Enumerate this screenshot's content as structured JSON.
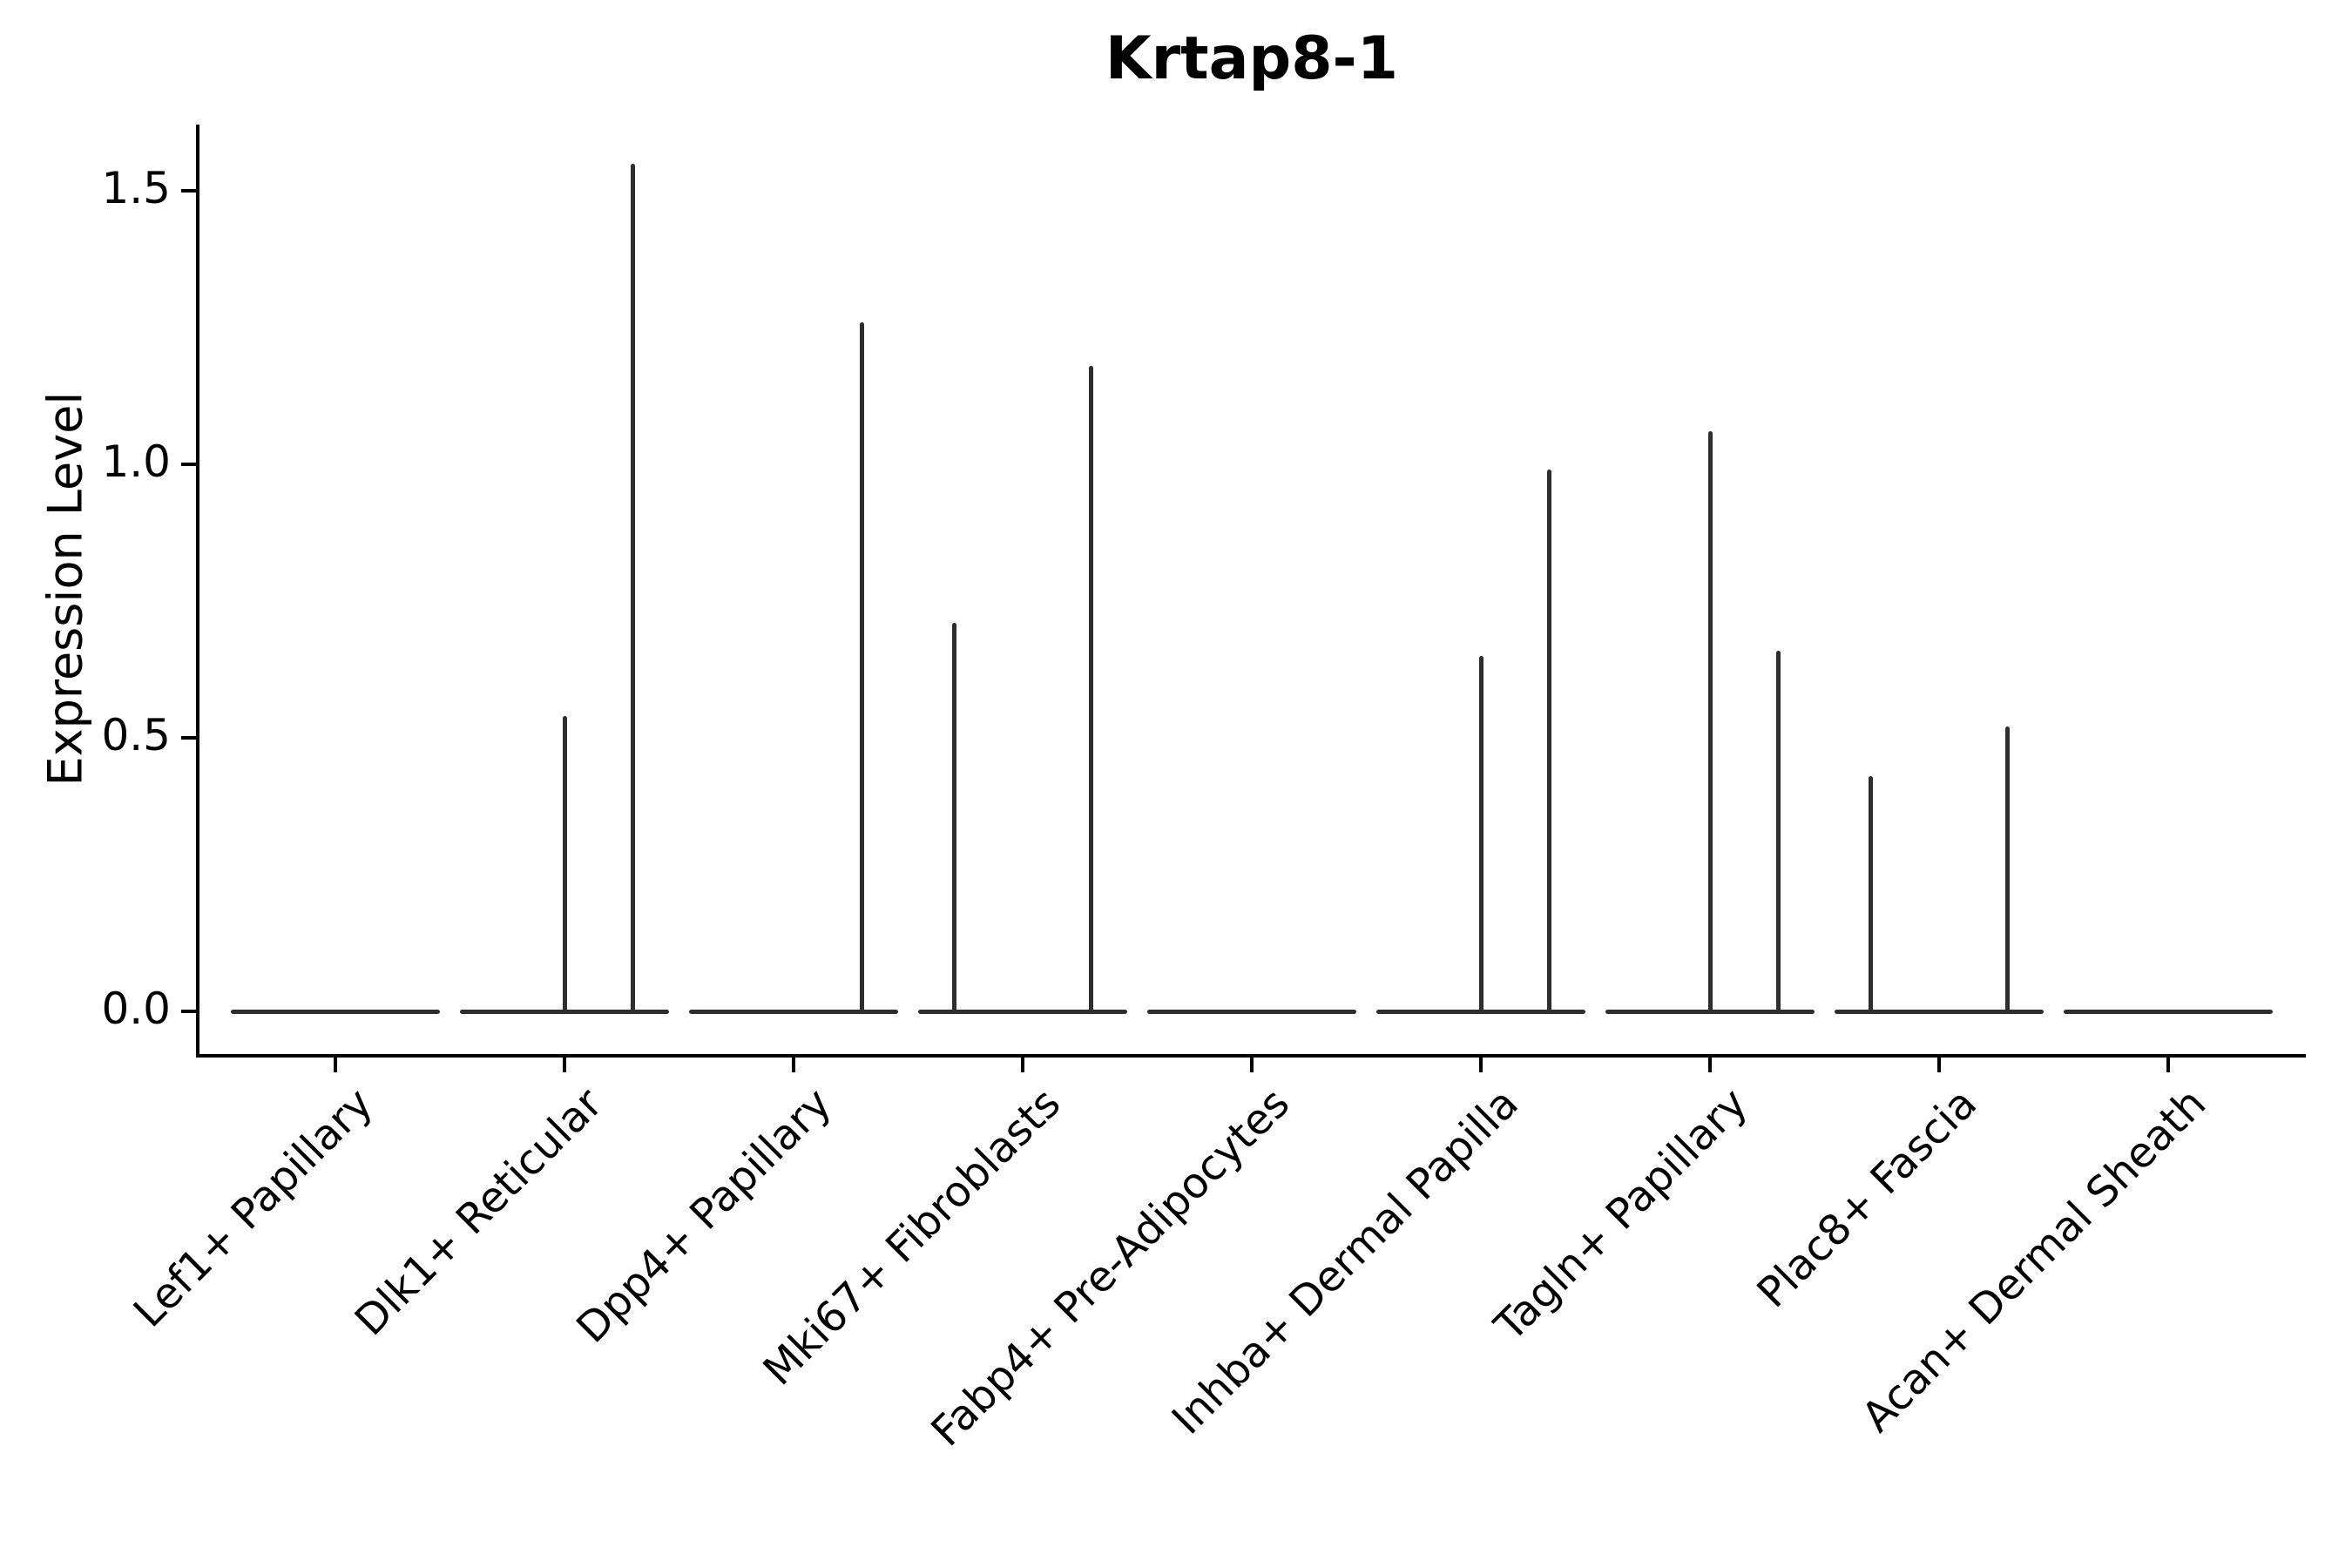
{
  "title": "Krtap8-1",
  "y_axis": {
    "label": "Expression Level",
    "tick_labels": [
      "0.0",
      "0.5",
      "1.0",
      "1.5"
    ],
    "tick_values": [
      0.0,
      0.5,
      1.0,
      1.5
    ]
  },
  "chart_data": {
    "type": "violin",
    "title": "Krtap8-1",
    "xlabel": "",
    "ylabel": "Expression Level",
    "ylim": [
      -0.08,
      1.62
    ],
    "y_ticks": [
      0.0,
      0.5,
      1.0,
      1.5
    ],
    "grid": false,
    "legend_position": "none",
    "categories": [
      "Lef1+ Papillary",
      "Dlk1+ Reticular",
      "Dpp4+ Papillary",
      "Mki67+ Fibroblasts",
      "Fabp4+ Pre-Adipocytes",
      "Inhba+ Dermal Papilla",
      "Tagln+ Papillary",
      "Plac8+ Fascia",
      "Acan+ Dermal Sheath"
    ],
    "series": [
      {
        "category": "Lef1+ Papillary",
        "baseline_value": 0.0,
        "spikes": []
      },
      {
        "category": "Dlk1+ Reticular",
        "baseline_value": 0.0,
        "spikes": [
          {
            "offset": 0.0,
            "value": 0.54
          },
          {
            "offset": 0.3,
            "value": 1.55
          }
        ]
      },
      {
        "category": "Dpp4+ Papillary",
        "baseline_value": 0.0,
        "spikes": [
          {
            "offset": 0.3,
            "value": 1.26
          }
        ]
      },
      {
        "category": "Mki67+ Fibroblasts",
        "baseline_value": 0.0,
        "spikes": [
          {
            "offset": -0.3,
            "value": 0.71
          },
          {
            "offset": 0.3,
            "value": 1.18
          }
        ]
      },
      {
        "category": "Fabp4+ Pre-Adipocytes",
        "baseline_value": 0.0,
        "spikes": []
      },
      {
        "category": "Inhba+ Dermal Papilla",
        "baseline_value": 0.0,
        "spikes": [
          {
            "offset": 0.0,
            "value": 0.65
          },
          {
            "offset": 0.3,
            "value": 0.99
          }
        ]
      },
      {
        "category": "Tagln+ Papillary",
        "baseline_value": 0.0,
        "spikes": [
          {
            "offset": 0.0,
            "value": 1.06
          },
          {
            "offset": 0.3,
            "value": 0.66
          }
        ]
      },
      {
        "category": "Plac8+ Fascia",
        "baseline_value": 0.0,
        "spikes": [
          {
            "offset": -0.3,
            "value": 0.43
          },
          {
            "offset": 0.3,
            "value": 0.52
          }
        ]
      },
      {
        "category": "Acan+ Dermal Sheath",
        "baseline_value": 0.0,
        "spikes": []
      }
    ],
    "colors": {
      "violin_line": "#2e2e2e",
      "axis": "#000000",
      "text": "#000000",
      "background": "#ffffff"
    }
  }
}
